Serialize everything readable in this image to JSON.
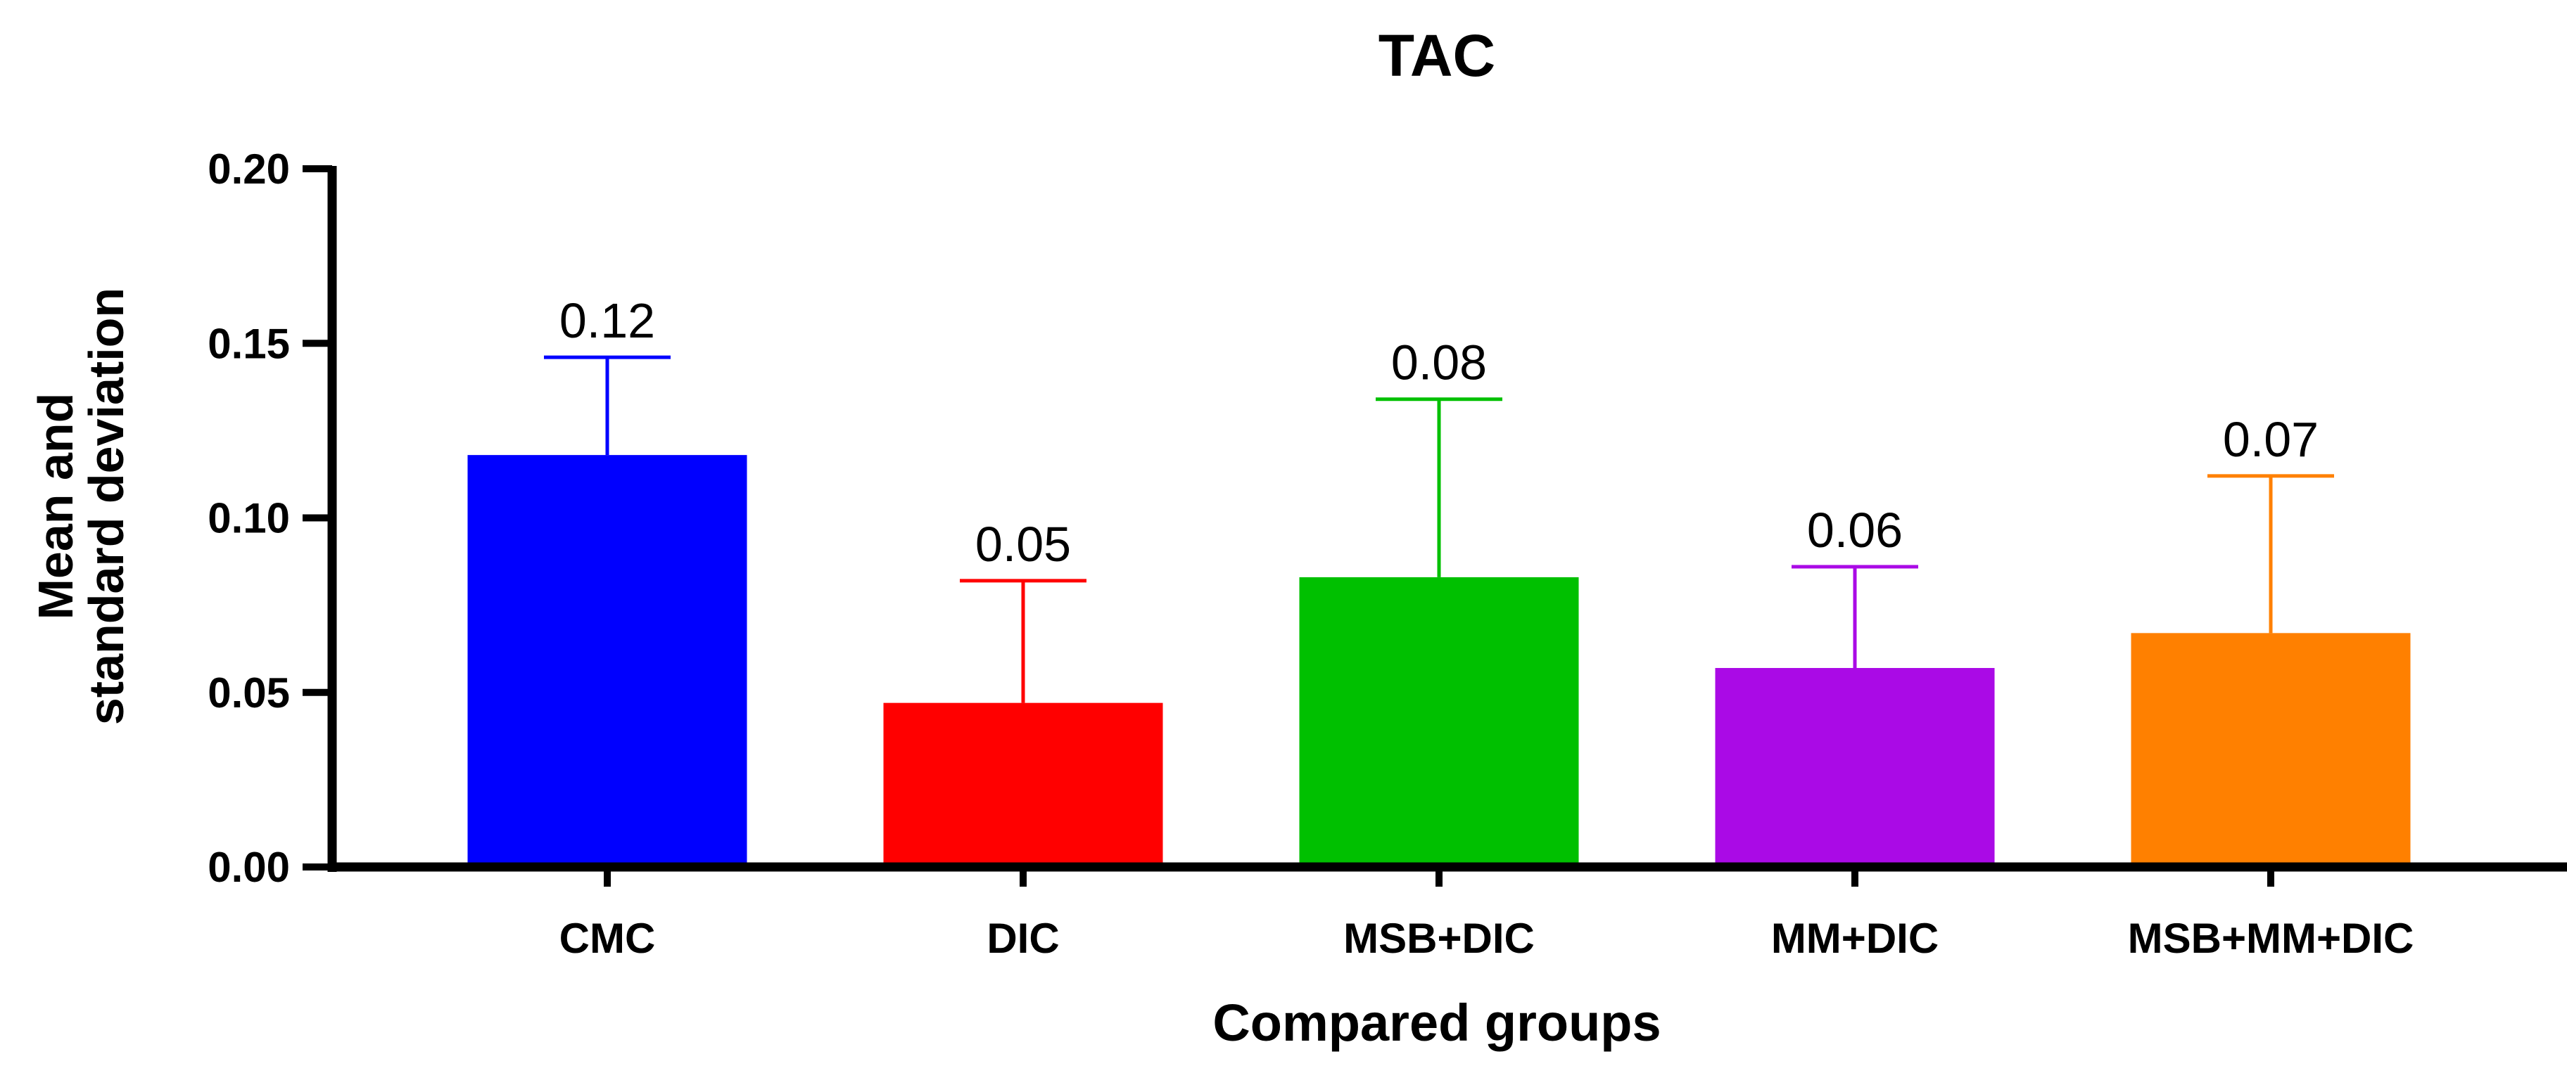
{
  "chart_data": {
    "type": "bar",
    "title": "TAC",
    "xlabel": "Compared groups",
    "ylabel": [
      "Mean and",
      "standard deviation"
    ],
    "categories": [
      "CMC",
      "DIC",
      "MSB+DIC",
      "MM+DIC",
      "MSB+MM+DIC"
    ],
    "values": [
      0.118,
      0.047,
      0.083,
      0.057,
      0.067
    ],
    "error_upper": [
      0.146,
      0.082,
      0.134,
      0.086,
      0.112
    ],
    "data_labels": [
      "0.12",
      "0.05",
      "0.08",
      "0.06",
      "0.07"
    ],
    "colors": [
      "#0000ff",
      "#ff0000",
      "#00c000",
      "#aa0ae6",
      "#ff8000"
    ],
    "ylim": [
      0,
      0.2
    ],
    "yticks": [
      0.0,
      0.05,
      0.1,
      0.15,
      0.2
    ],
    "ytick_labels": [
      "0.00",
      "0.05",
      "0.10",
      "0.15",
      "0.20"
    ],
    "grid": false,
    "legend": "none"
  }
}
